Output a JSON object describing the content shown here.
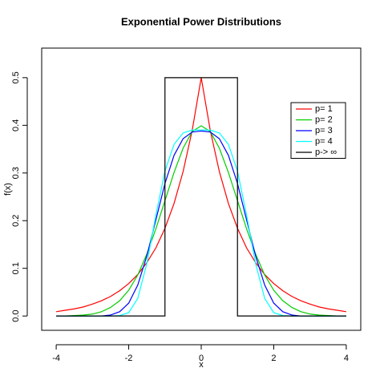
{
  "chart_data": {
    "type": "line",
    "title": "Exponential Power Distributions",
    "x_label": "x",
    "y_label": "f(x)",
    "x": [
      -4,
      -3.75,
      -3.5,
      -3.25,
      -3,
      -2.75,
      -2.5,
      -2.25,
      -2,
      -1.75,
      -1.5,
      -1.25,
      -1,
      -0.75,
      -0.5,
      -0.25,
      0,
      0.25,
      0.5,
      0.75,
      1,
      1.25,
      1.5,
      1.75,
      2,
      2.25,
      2.5,
      2.75,
      3,
      3.25,
      3.5,
      3.75,
      4
    ],
    "series": [
      {
        "name": "p= 1",
        "color": "#ff0000",
        "values": [
          0.009,
          0.012,
          0.015,
          0.019,
          0.025,
          0.032,
          0.041,
          0.053,
          0.068,
          0.087,
          0.112,
          0.143,
          0.184,
          0.236,
          0.303,
          0.389,
          0.5,
          0.389,
          0.303,
          0.236,
          0.184,
          0.143,
          0.112,
          0.087,
          0.068,
          0.053,
          0.041,
          0.032,
          0.025,
          0.019,
          0.015,
          0.012,
          0.009
        ]
      },
      {
        "name": "p= 2",
        "color": "#00cd00",
        "values": [
          0,
          0,
          0.001,
          0.002,
          0.004,
          0.009,
          0.018,
          0.032,
          0.054,
          0.086,
          0.13,
          0.183,
          0.242,
          0.301,
          0.352,
          0.387,
          0.399,
          0.387,
          0.352,
          0.301,
          0.242,
          0.183,
          0.13,
          0.086,
          0.054,
          0.032,
          0.018,
          0.009,
          0.004,
          0.002,
          0.001,
          0,
          0
        ]
      },
      {
        "name": "p= 3",
        "color": "#0000ff",
        "values": [
          0,
          0,
          0,
          0,
          0,
          0,
          0.002,
          0.009,
          0.027,
          0.065,
          0.126,
          0.202,
          0.278,
          0.337,
          0.372,
          0.386,
          0.388,
          0.386,
          0.372,
          0.337,
          0.278,
          0.202,
          0.126,
          0.065,
          0.027,
          0.009,
          0.002,
          0,
          0,
          0,
          0,
          0,
          0
        ]
      },
      {
        "name": "p= 4",
        "color": "#00ffff",
        "values": [
          0,
          0,
          0,
          0,
          0,
          0,
          0,
          0.001,
          0.007,
          0.037,
          0.11,
          0.212,
          0.304,
          0.36,
          0.384,
          0.39,
          0.39,
          0.39,
          0.384,
          0.36,
          0.304,
          0.212,
          0.11,
          0.037,
          0.007,
          0.001,
          0,
          0,
          0,
          0,
          0,
          0,
          0
        ]
      },
      {
        "name": "p-> ∞",
        "color": "#000000",
        "x": [
          -4,
          -1,
          -1,
          1,
          1,
          4
        ],
        "values": [
          0,
          0,
          0.5,
          0.5,
          0,
          0
        ]
      }
    ],
    "xlim": [
      -4.4,
      4.4
    ],
    "ylim": [
      -0.03,
      0.562
    ],
    "xticks": [
      -4,
      -2,
      0,
      2,
      4
    ],
    "yticks": [
      {
        "value": 0,
        "label": "0.0"
      },
      0.1,
      0.2,
      0.3,
      0.4,
      0.5
    ],
    "legend": "top-right"
  }
}
